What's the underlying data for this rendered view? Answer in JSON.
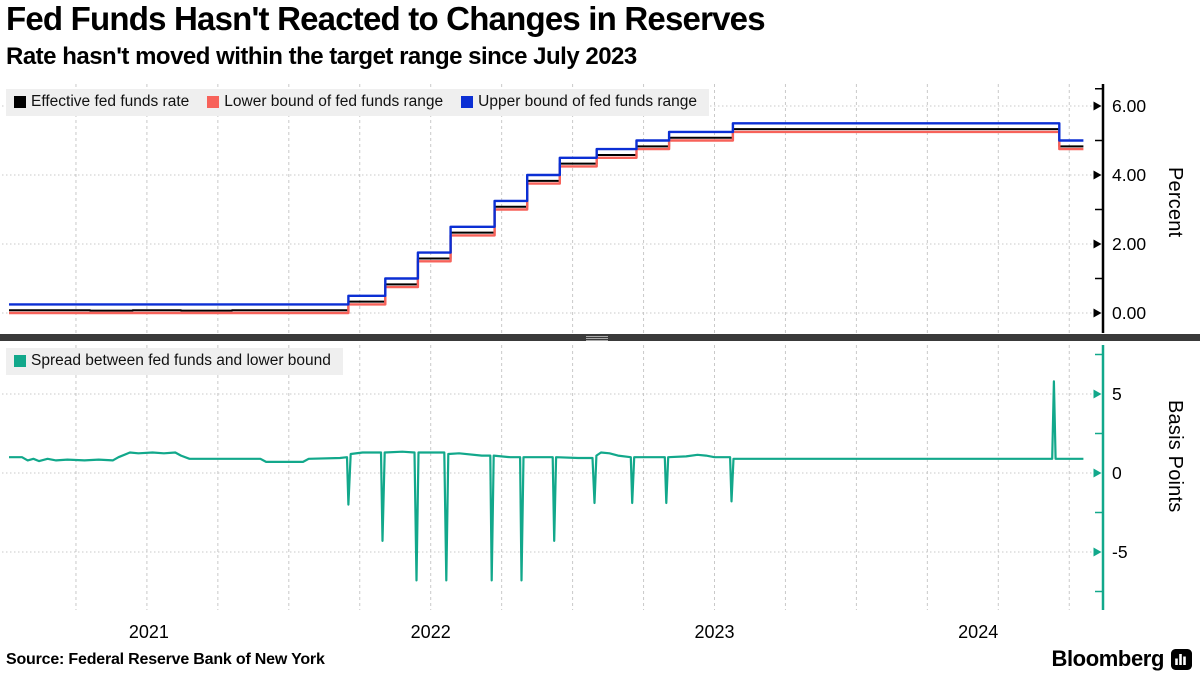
{
  "header": {
    "title": "Fed Funds Hasn't Reacted to Changes in Reserves",
    "subtitle": "Rate hasn't moved within the target range since July 2023"
  },
  "source": {
    "text": "Source: Federal Reserve Bank of New York"
  },
  "brand": {
    "name": "Bloomberg",
    "icon": "bloomberg-bars-icon"
  },
  "colors": {
    "legend_bg": "#efefef",
    "divider": "#3a3a3a",
    "grid": "#c9c9c9",
    "axis_top": "#000000",
    "axis_bottom": "#12a88b"
  },
  "chart_data": [
    {
      "type": "line",
      "panel": "top",
      "ylabel": "Percent",
      "ylim": [
        -0.6,
        6.6
      ],
      "yticks": [
        {
          "value": 6,
          "label": "6.00"
        },
        {
          "value": 4,
          "label": "4.00"
        },
        {
          "value": 2,
          "label": "2.00"
        },
        {
          "value": 0,
          "label": "0.00"
        }
      ],
      "yticks_minor": [
        6.5,
        5,
        3,
        1
      ],
      "x_unit": "years_since_2021",
      "x_range": [
        0.014,
        3.8
      ],
      "x_year_labels": [
        "2021",
        "2022",
        "2023",
        "2024"
      ],
      "grid_x_interval_years": 0.25,
      "grid": true,
      "legend_position": "top-left",
      "interpolation": "step-after",
      "series": [
        {
          "name": "Effective fed funds rate",
          "color": "#000000",
          "width": 2,
          "points": [
            [
              0.014,
              0.08
            ],
            [
              0.3,
              0.07
            ],
            [
              0.45,
              0.08
            ],
            [
              0.62,
              0.07
            ],
            [
              0.8,
              0.08
            ],
            [
              1.21,
              0.33
            ],
            [
              1.34,
              0.83
            ],
            [
              1.455,
              1.58
            ],
            [
              1.57,
              2.33
            ],
            [
              1.725,
              3.08
            ],
            [
              1.84,
              3.83
            ],
            [
              1.955,
              4.33
            ],
            [
              2.085,
              4.58
            ],
            [
              2.225,
              4.83
            ],
            [
              2.34,
              5.08
            ],
            [
              2.565,
              5.33
            ],
            [
              3.715,
              4.83
            ]
          ]
        },
        {
          "name": "Lower bound of fed funds range",
          "color": "#f7625a",
          "width": 2.4,
          "points": [
            [
              0.014,
              0.0
            ],
            [
              1.21,
              0.25
            ],
            [
              1.34,
              0.75
            ],
            [
              1.455,
              1.5
            ],
            [
              1.57,
              2.25
            ],
            [
              1.725,
              3.0
            ],
            [
              1.84,
              3.75
            ],
            [
              1.955,
              4.25
            ],
            [
              2.085,
              4.5
            ],
            [
              2.225,
              4.75
            ],
            [
              2.34,
              5.0
            ],
            [
              2.565,
              5.25
            ],
            [
              3.715,
              4.75
            ]
          ]
        },
        {
          "name": "Upper bound of fed funds range",
          "color": "#0b2fd4",
          "width": 2.4,
          "points": [
            [
              0.014,
              0.25
            ],
            [
              1.21,
              0.5
            ],
            [
              1.34,
              1.0
            ],
            [
              1.455,
              1.75
            ],
            [
              1.57,
              2.5
            ],
            [
              1.725,
              3.25
            ],
            [
              1.84,
              4.0
            ],
            [
              1.955,
              4.5
            ],
            [
              2.085,
              4.75
            ],
            [
              2.225,
              5.0
            ],
            [
              2.34,
              5.25
            ],
            [
              2.565,
              5.5
            ],
            [
              3.715,
              5.0
            ]
          ]
        }
      ]
    },
    {
      "type": "line",
      "panel": "bottom",
      "ylabel": "Basis Points",
      "ylim": [
        -8.8,
        8.2
      ],
      "yticks": [
        {
          "value": 5,
          "label": "5"
        },
        {
          "value": 0,
          "label": "0"
        },
        {
          "value": -5,
          "label": "-5"
        }
      ],
      "yticks_minor": [
        7.5,
        2.5,
        -2.5,
        -7.5
      ],
      "x_unit": "years_since_2021",
      "x_range": [
        0.014,
        3.8
      ],
      "grid": true,
      "legend_position": "top-left",
      "interpolation": "linear",
      "series": [
        {
          "name": "Spread between fed funds and lower bound",
          "color": "#12a88b",
          "width": 2.2,
          "points": [
            [
              0.014,
              1.0
            ],
            [
              0.06,
              1.0
            ],
            [
              0.08,
              0.8
            ],
            [
              0.1,
              0.9
            ],
            [
              0.12,
              0.75
            ],
            [
              0.15,
              0.9
            ],
            [
              0.18,
              0.8
            ],
            [
              0.22,
              0.85
            ],
            [
              0.28,
              0.8
            ],
            [
              0.33,
              0.85
            ],
            [
              0.38,
              0.8
            ],
            [
              0.4,
              1.0
            ],
            [
              0.44,
              1.3
            ],
            [
              0.47,
              1.25
            ],
            [
              0.52,
              1.3
            ],
            [
              0.56,
              1.25
            ],
            [
              0.6,
              1.3
            ],
            [
              0.62,
              1.1
            ],
            [
              0.65,
              0.9
            ],
            [
              0.75,
              0.9
            ],
            [
              0.9,
              0.9
            ],
            [
              0.92,
              0.7
            ],
            [
              1.05,
              0.7
            ],
            [
              1.07,
              0.9
            ],
            [
              1.18,
              0.95
            ],
            [
              1.205,
              1.0
            ],
            [
              1.21,
              -2.0
            ],
            [
              1.218,
              1.2
            ],
            [
              1.26,
              1.3
            ],
            [
              1.3,
              1.3
            ],
            [
              1.325,
              1.3
            ],
            [
              1.33,
              -4.3
            ],
            [
              1.338,
              1.3
            ],
            [
              1.4,
              1.35
            ],
            [
              1.443,
              1.3
            ],
            [
              1.45,
              -6.8
            ],
            [
              1.457,
              1.3
            ],
            [
              1.5,
              1.3
            ],
            [
              1.548,
              1.3
            ],
            [
              1.555,
              -6.8
            ],
            [
              1.562,
              1.2
            ],
            [
              1.6,
              1.25
            ],
            [
              1.68,
              1.1
            ],
            [
              1.71,
              1.1
            ],
            [
              1.715,
              -6.8
            ],
            [
              1.722,
              1.1
            ],
            [
              1.78,
              1.0
            ],
            [
              1.815,
              1.0
            ],
            [
              1.82,
              -6.8
            ],
            [
              1.827,
              1.0
            ],
            [
              1.88,
              1.0
            ],
            [
              1.93,
              1.0
            ],
            [
              1.935,
              -4.3
            ],
            [
              1.942,
              1.0
            ],
            [
              2.02,
              0.95
            ],
            [
              2.07,
              0.95
            ],
            [
              2.077,
              -1.9
            ],
            [
              2.084,
              1.1
            ],
            [
              2.1,
              1.3
            ],
            [
              2.13,
              1.25
            ],
            [
              2.16,
              1.1
            ],
            [
              2.205,
              1.0
            ],
            [
              2.21,
              -1.9
            ],
            [
              2.217,
              1.0
            ],
            [
              2.3,
              1.0
            ],
            [
              2.325,
              1.0
            ],
            [
              2.33,
              -1.9
            ],
            [
              2.337,
              1.0
            ],
            [
              2.4,
              1.05
            ],
            [
              2.44,
              1.15
            ],
            [
              2.47,
              1.1
            ],
            [
              2.5,
              1.0
            ],
            [
              2.555,
              1.0
            ],
            [
              2.56,
              -1.8
            ],
            [
              2.567,
              0.9
            ],
            [
              2.8,
              0.9
            ],
            [
              3.2,
              0.9
            ],
            [
              3.6,
              0.9
            ],
            [
              3.69,
              0.9
            ],
            [
              3.696,
              5.8
            ],
            [
              3.702,
              0.9
            ],
            [
              3.8,
              0.9
            ]
          ]
        }
      ]
    }
  ]
}
